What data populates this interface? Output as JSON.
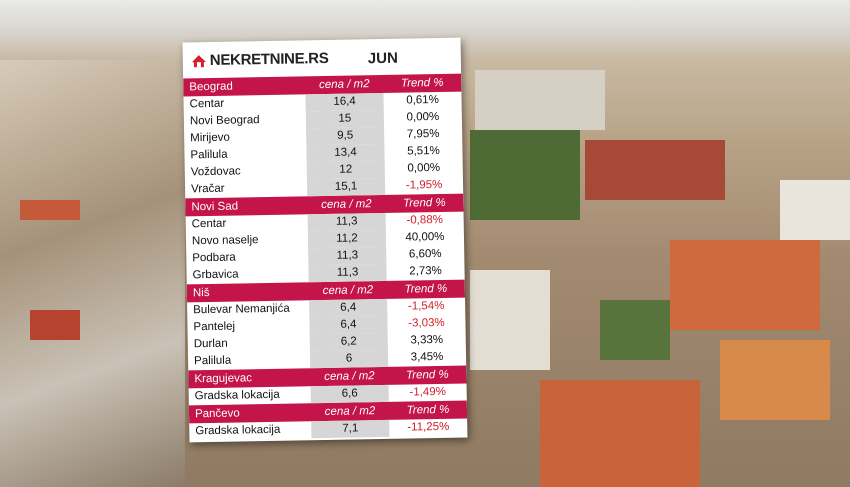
{
  "header": {
    "logo": "NEKRETNINE.RS",
    "month": "JUN"
  },
  "sections": [
    {
      "city": "Beograd",
      "price_header": "cena / m2",
      "trend_header": "Trend %",
      "rows": [
        [
          "Centar",
          "16,4",
          "0,61%"
        ],
        [
          "Novi Beograd",
          "15",
          "0,00%"
        ],
        [
          "Mirijevo",
          "9,5",
          "7,95%"
        ],
        [
          "Palilula",
          "13,4",
          "5,51%"
        ],
        [
          "Voždovac",
          "12",
          "0,00%"
        ],
        [
          "Vračar",
          "15,1",
          "-1,95%"
        ]
      ]
    },
    {
      "city": "Novi Sad",
      "price_header": "cena / m2",
      "trend_header": "Trend %",
      "rows": [
        [
          "Centar",
          "11,3",
          "-0,88%"
        ],
        [
          "Novo naselje",
          "11,2",
          "40,00%"
        ],
        [
          "Podbara",
          "11,3",
          "6,60%"
        ],
        [
          "Grbavica",
          "11,3",
          "2,73%"
        ]
      ]
    },
    {
      "city": "Niš",
      "price_header": "cena / m2",
      "trend_header": "Trend %",
      "rows": [
        [
          "Bulevar Nemanjića",
          "6,4",
          "-1,54%"
        ],
        [
          "Pantelej",
          "6,4",
          "-3,03%"
        ],
        [
          "Durlan",
          "6,2",
          "3,33%"
        ],
        [
          "Palilula",
          "6",
          "3,45%"
        ]
      ]
    },
    {
      "city": "Kragujevac",
      "price_header": "cena / m2",
      "trend_header": "Trend %",
      "rows": [
        [
          "Gradska lokacija",
          "6,6",
          "-1,49%"
        ]
      ]
    },
    {
      "city": "Pančevo",
      "price_header": "cena / m2",
      "trend_header": "Trend %",
      "rows": [
        [
          "Gradska lokacija",
          "7,1",
          "-11,25%"
        ]
      ]
    }
  ]
}
